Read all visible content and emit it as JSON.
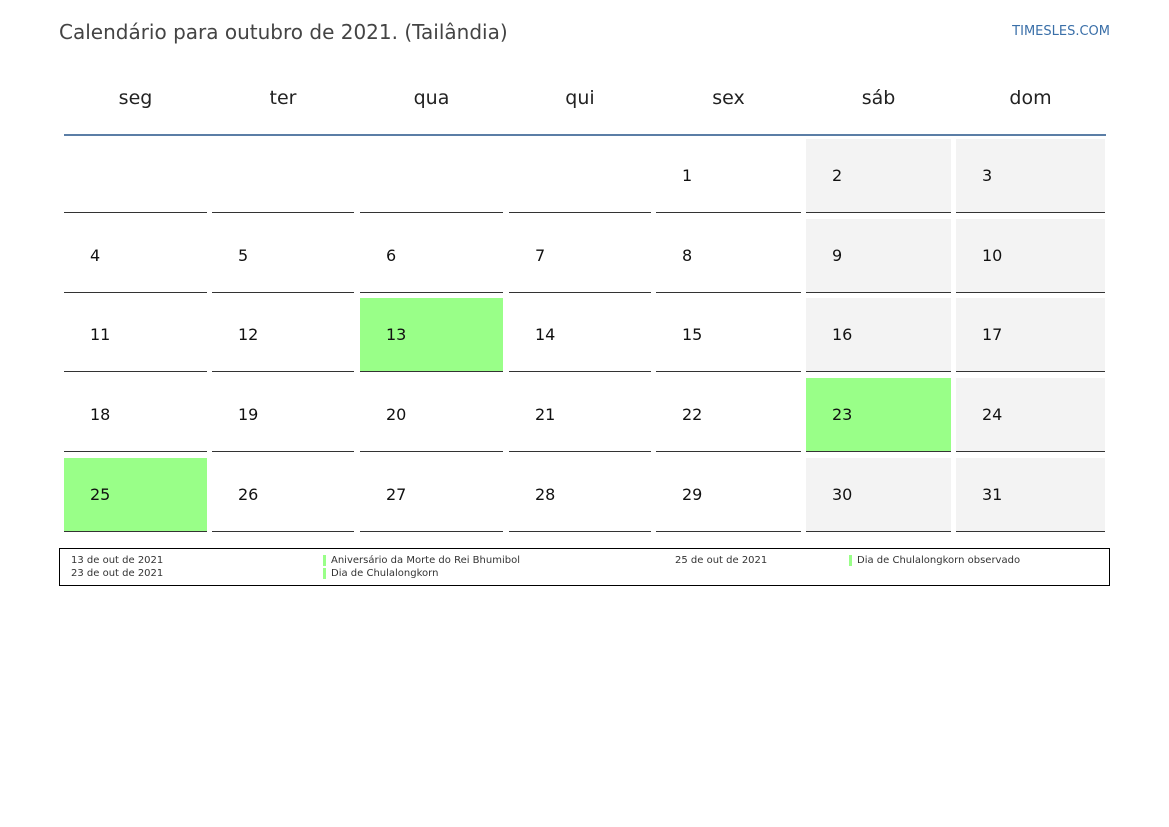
{
  "title": "Calendário para outubro de 2021. (Tailândia)",
  "site": "TIMESLES.COM",
  "colors": {
    "holiday": "#99ff88",
    "weekend": "#f3f3f3",
    "header_rule": "#5b7ea6",
    "link": "#3a6fa8"
  },
  "weekdays": [
    "seg",
    "ter",
    "qua",
    "qui",
    "sex",
    "sáb",
    "dom"
  ],
  "weeks": [
    [
      "",
      "",
      "",
      "",
      "1",
      "2",
      "3"
    ],
    [
      "4",
      "5",
      "6",
      "7",
      "8",
      "9",
      "10"
    ],
    [
      "11",
      "12",
      "13",
      "14",
      "15",
      "16",
      "17"
    ],
    [
      "18",
      "19",
      "20",
      "21",
      "22",
      "23",
      "24"
    ],
    [
      "25",
      "26",
      "27",
      "28",
      "29",
      "30",
      "31"
    ]
  ],
  "holiday_days": [
    "13",
    "23",
    "25"
  ],
  "legend": [
    {
      "date": "13 de out de 2021",
      "name": "Aniversário da Morte do Rei Bhumibol"
    },
    {
      "date": "23 de out de 2021",
      "name": "Dia de Chulalongkorn"
    },
    {
      "date": "25 de out de 2021",
      "name": "Dia de Chulalongkorn observado"
    }
  ]
}
